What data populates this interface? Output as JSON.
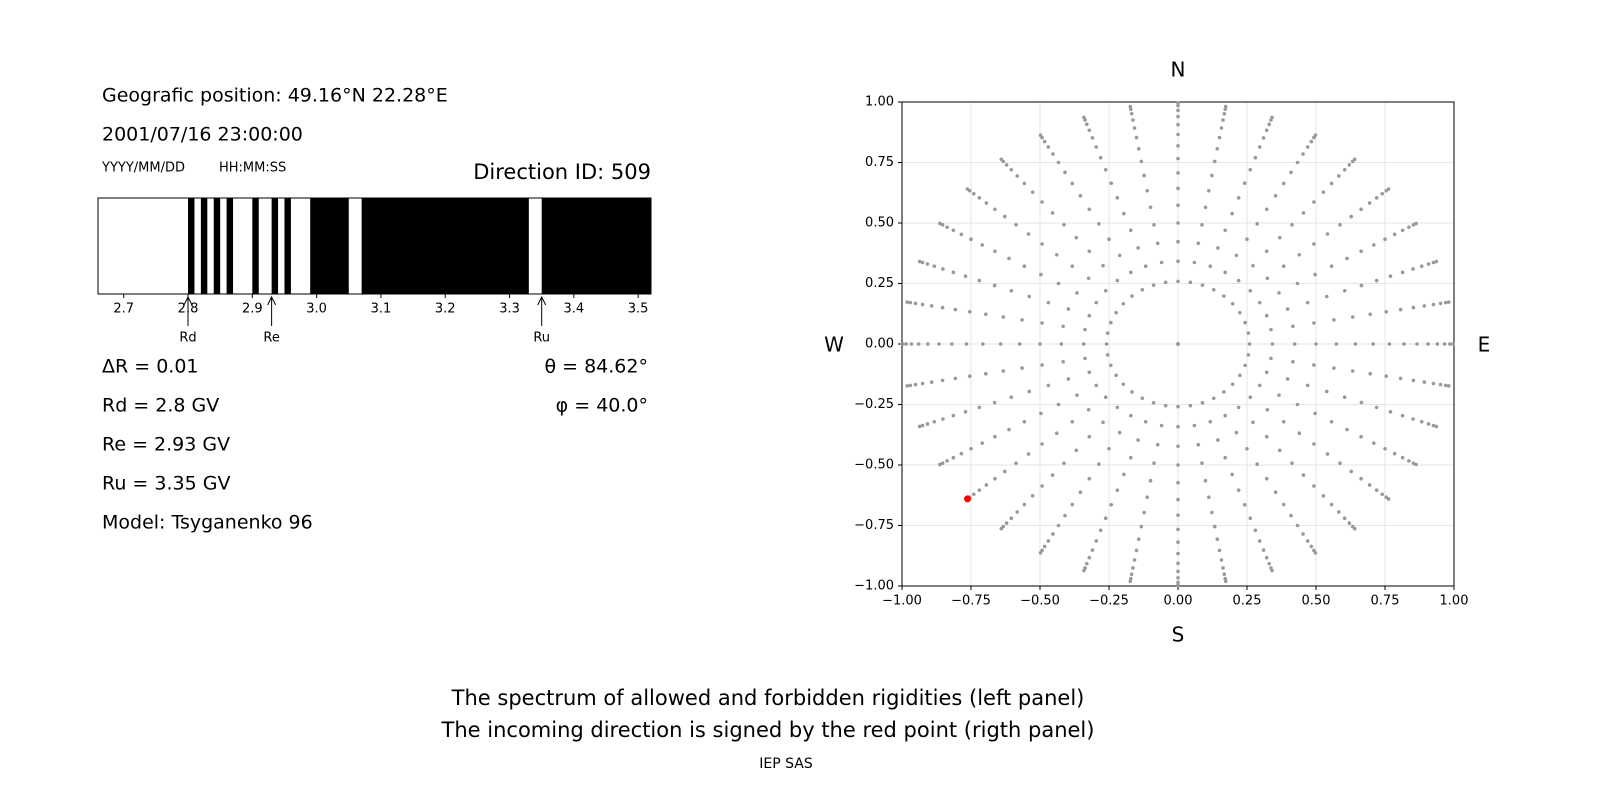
{
  "header": {
    "position": "Geografic position: 49.16°N 22.28°E",
    "datetime": "2001/07/16 23:00:00",
    "date_format": "YYYY/MM/DD",
    "time_format": "HH:MM:SS",
    "direction_id": "Direction ID: 509"
  },
  "parameters": [
    "ΔR = 0.01",
    "Rd = 2.8 GV",
    "Re = 2.93 GV",
    "Ru = 3.35 GV",
    "Model: Tsyganenko 96"
  ],
  "angles": [
    "θ = 84.62°",
    "φ = 40.0°"
  ],
  "caption": [
    "The spectrum of allowed and forbidden rigidities (left panel)",
    "The incoming direction is signed by the red point (rigth panel)"
  ],
  "credit": "IEP SAS",
  "chart_data": [
    {
      "type": "spectrum",
      "xlim": [
        2.66,
        3.52
      ],
      "xticks": [
        2.7,
        2.8,
        2.9,
        {
          "value": 3,
          "label": "3.0"
        },
        3.1,
        3.2,
        3.3,
        3.4,
        3.5
      ],
      "bands": [
        [
          2.8,
          2.81
        ],
        [
          2.82,
          2.83
        ],
        [
          2.84,
          2.85
        ],
        [
          2.86,
          2.87
        ],
        [
          2.9,
          2.91
        ],
        [
          2.93,
          2.94
        ],
        [
          2.95,
          2.96
        ],
        [
          2.99,
          3.05
        ],
        [
          3.07,
          3.33
        ],
        [
          3.35,
          3.52
        ]
      ],
      "band_color": "#000000",
      "markers": [
        {
          "name": "Rd",
          "value": 2.8
        },
        {
          "name": "Re",
          "value": 2.93
        },
        {
          "name": "Ru",
          "value": 3.35
        }
      ]
    },
    {
      "type": "scatter",
      "xlim": [
        -1,
        1
      ],
      "ylim": [
        -1,
        1
      ],
      "xticks": [
        {
          "value": -1,
          "label": "−1.00"
        },
        {
          "value": -0.75,
          "label": "−0.75"
        },
        {
          "value": -0.5,
          "label": "−0.50"
        },
        {
          "value": -0.25,
          "label": "−0.25"
        },
        {
          "value": 0,
          "label": "0.00"
        },
        {
          "value": 0.25,
          "label": "0.25"
        },
        {
          "value": 0.5,
          "label": "0.50"
        },
        {
          "value": 0.75,
          "label": "0.75"
        },
        {
          "value": 1,
          "label": "1.00"
        }
      ],
      "yticks": [
        {
          "value": -1,
          "label": "−1.00"
        },
        {
          "value": -0.75,
          "label": "−0.75"
        },
        {
          "value": -0.5,
          "label": "−0.50"
        },
        {
          "value": -0.25,
          "label": "−0.25"
        },
        {
          "value": 0,
          "label": "0.00"
        },
        {
          "value": 0.25,
          "label": "0.25"
        },
        {
          "value": 0.5,
          "label": "0.50"
        },
        {
          "value": 0.75,
          "label": "0.75"
        },
        {
          "value": 1,
          "label": "1.00"
        }
      ],
      "grid": true,
      "zenith_deg": [
        0,
        15,
        20,
        25,
        30,
        35,
        40,
        45,
        50,
        55,
        60,
        65,
        70,
        75,
        80,
        85
      ],
      "azimuth_deg": [
        0,
        10,
        20,
        30,
        40,
        50,
        60,
        70,
        80,
        90,
        100,
        110,
        120,
        130,
        140,
        150,
        160,
        170,
        180,
        190,
        200,
        210,
        220,
        230,
        240,
        250,
        260,
        270,
        280,
        290,
        300,
        310,
        320,
        330,
        340,
        350
      ],
      "color": "#999999",
      "highlight": {
        "theta": 84.62,
        "phi": 40.0,
        "color": "#ff0000"
      },
      "directions": {
        "north": "N",
        "south": "S",
        "west": "W",
        "east": "E"
      }
    }
  ]
}
